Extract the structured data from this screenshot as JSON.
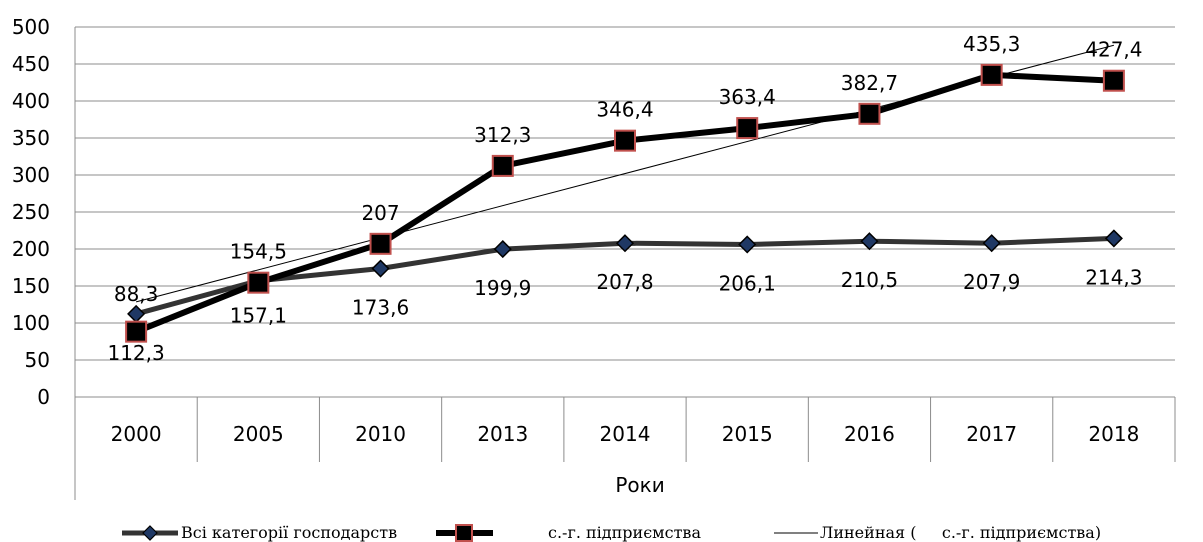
{
  "chart_data": {
    "type": "line",
    "title": "",
    "xlabel": "Роки",
    "ylabel": "",
    "ylim": [
      0,
      500
    ],
    "yticks": [
      0,
      50,
      100,
      150,
      200,
      250,
      300,
      350,
      400,
      450,
      500
    ],
    "grid": "horizontal",
    "legend_position": "bottom",
    "categories": [
      "2000",
      "2005",
      "2010",
      "2013",
      "2014",
      "2015",
      "2016",
      "2017",
      "2018"
    ],
    "series": [
      {
        "name": "Всі категорії господарств",
        "values": [
          112.3,
          157.1,
          173.6,
          199.9,
          207.8,
          206.1,
          210.5,
          207.9,
          214.3
        ],
        "labels": [
          "112,3",
          "157,1",
          "173,6",
          "199,9",
          "207,8",
          "206,1",
          "210,5",
          "207,9",
          "214,3"
        ],
        "color": "#333333",
        "marker": "diamond",
        "marker_color": "#1f3864"
      },
      {
        "name": "с.-г. підприємства",
        "values": [
          88.3,
          154.5,
          207,
          312.3,
          346.4,
          363.4,
          382.7,
          435.3,
          427.4
        ],
        "labels": [
          "88,3",
          "154,5",
          "207",
          "312,3",
          "346,4",
          "363,4",
          "382,7",
          "435,3",
          "427,4"
        ],
        "color": "#000000",
        "marker": "square",
        "marker_color": "#c0504d"
      }
    ],
    "trendline": {
      "name": "Линейная (     с.-г. підприємства)",
      "type": "linear",
      "of_series": "с.-г. підприємства",
      "color": "#000000"
    }
  }
}
